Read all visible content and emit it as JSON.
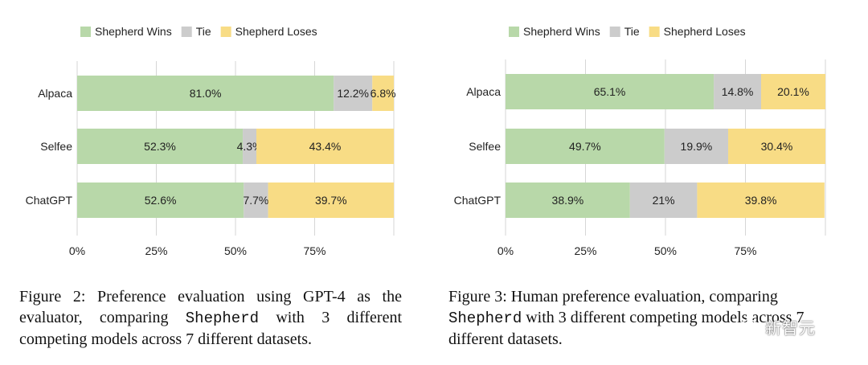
{
  "colors": {
    "wins": "#b8d8a9",
    "tie": "#cccccc",
    "loses": "#f8dc85",
    "text": "#222222",
    "grid": "#d6d6d6"
  },
  "chart_data": [
    {
      "type": "bar",
      "orientation": "horizontal-stacked",
      "title": "",
      "xlabel": "",
      "ylabel": "",
      "xlim": [
        0,
        100
      ],
      "legend_position": "top",
      "x_ticks": [
        "0%",
        "25%",
        "50%",
        "75%"
      ],
      "categories": [
        "Alpaca",
        "Selfee",
        "ChatGPT"
      ],
      "series": [
        {
          "name": "Shepherd Wins",
          "color_key": "wins",
          "values": [
            81.0,
            52.3,
            52.6
          ],
          "labels": [
            "81.0%",
            "52.3%",
            "52.6%"
          ]
        },
        {
          "name": "Tie",
          "color_key": "tie",
          "values": [
            12.2,
            4.3,
            7.7
          ],
          "labels": [
            "12.2%",
            "4.3%",
            "7.7%"
          ]
        },
        {
          "name": "Shepherd Loses",
          "color_key": "loses",
          "values": [
            6.8,
            43.4,
            39.7
          ],
          "labels": [
            "6.8%",
            "43.4%",
            "39.7%"
          ]
        }
      ]
    },
    {
      "type": "bar",
      "orientation": "horizontal-stacked",
      "title": "",
      "xlabel": "",
      "ylabel": "",
      "xlim": [
        0,
        100
      ],
      "legend_position": "top",
      "x_ticks": [
        "0%",
        "25%",
        "50%",
        "75%"
      ],
      "categories": [
        "Alpaca",
        "Selfee",
        "ChatGPT"
      ],
      "series": [
        {
          "name": "Shepherd Wins",
          "color_key": "wins",
          "values": [
            65.1,
            49.7,
            38.9
          ],
          "labels": [
            "65.1%",
            "49.7%",
            "38.9%"
          ]
        },
        {
          "name": "Tie",
          "color_key": "tie",
          "values": [
            14.8,
            19.9,
            21.0
          ],
          "labels": [
            "14.8%",
            "19.9%",
            "21%"
          ]
        },
        {
          "name": "Shepherd Loses",
          "color_key": "loses",
          "values": [
            20.1,
            30.4,
            39.8
          ],
          "labels": [
            "20.1%",
            "30.4%",
            "39.8%"
          ]
        }
      ]
    }
  ],
  "captions": {
    "left": {
      "prefix": "Figure 2:  Preference evaluation using GPT-4 as the evaluator, comparing ",
      "code": "Shepherd",
      "suffix": " with 3 different competing models across 7 different datasets."
    },
    "right": {
      "prefix": "Figure 3: Human preference evaluation, comparing ",
      "code": "Shepherd",
      "suffix": " with 3 different competing models across 7 different datasets."
    }
  },
  "watermark": {
    "text": "新智元"
  }
}
